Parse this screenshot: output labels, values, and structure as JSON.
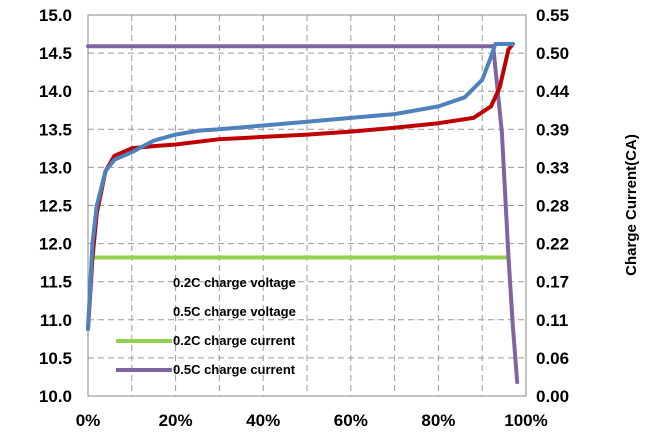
{
  "chart_data": {
    "type": "line",
    "xlabel": "",
    "ylabel_left": "",
    "ylabel_right": "Charge Current(CA)",
    "x_ticks": [
      "0%",
      "20%",
      "40%",
      "60%",
      "80%",
      "100%"
    ],
    "xlim": [
      0,
      100
    ],
    "y_left_ticks": [
      "10.0",
      "10.5",
      "11.0",
      "11.5",
      "12.0",
      "12.5",
      "13.0",
      "13.5",
      "14.0",
      "14.5",
      "15.0"
    ],
    "ylim_left": [
      10.0,
      15.0
    ],
    "y_right_ticks": [
      "0.00",
      "0.06",
      "0.11",
      "0.17",
      "0.22",
      "0.28",
      "0.33",
      "0.39",
      "0.44",
      "0.50",
      "0.55"
    ],
    "ylim_right": [
      0.0,
      0.55
    ],
    "grid": true,
    "legend_position": "bottom-left",
    "series": [
      {
        "name": "0.2C charge voltage",
        "axis": "left",
        "color": "#c00000",
        "points": [
          [
            0,
            10.88
          ],
          [
            1,
            11.8
          ],
          [
            2,
            12.4
          ],
          [
            4,
            12.95
          ],
          [
            6,
            13.15
          ],
          [
            10,
            13.25
          ],
          [
            15,
            13.28
          ],
          [
            20,
            13.3
          ],
          [
            30,
            13.37
          ],
          [
            40,
            13.4
          ],
          [
            50,
            13.43
          ],
          [
            60,
            13.47
          ],
          [
            70,
            13.52
          ],
          [
            80,
            13.58
          ],
          [
            88,
            13.65
          ],
          [
            92,
            13.8
          ],
          [
            94,
            14.05
          ],
          [
            96,
            14.55
          ],
          [
            97,
            14.62
          ]
        ]
      },
      {
        "name": "0.5C charge voltage",
        "axis": "left",
        "color": "#4f81bd",
        "points": [
          [
            0,
            10.88
          ],
          [
            1,
            12.0
          ],
          [
            2,
            12.5
          ],
          [
            4,
            12.95
          ],
          [
            6,
            13.1
          ],
          [
            10,
            13.2
          ],
          [
            15,
            13.35
          ],
          [
            20,
            13.43
          ],
          [
            25,
            13.48
          ],
          [
            30,
            13.5
          ],
          [
            40,
            13.55
          ],
          [
            50,
            13.6
          ],
          [
            60,
            13.65
          ],
          [
            70,
            13.7
          ],
          [
            80,
            13.8
          ],
          [
            86,
            13.92
          ],
          [
            90,
            14.15
          ],
          [
            92,
            14.45
          ],
          [
            93,
            14.62
          ],
          [
            97,
            14.62
          ]
        ]
      },
      {
        "name": "0.2C charge current",
        "axis": "right",
        "color": "#92d050",
        "points": [
          [
            1,
            0.2
          ],
          [
            96,
            0.2
          ]
        ]
      },
      {
        "name": "0.5C charge current",
        "axis": "right",
        "color": "#8064a2",
        "points": [
          [
            0,
            0.505
          ],
          [
            92.5,
            0.505
          ],
          [
            94.5,
            0.38
          ],
          [
            96,
            0.2
          ],
          [
            97,
            0.1
          ],
          [
            98,
            0.02
          ]
        ]
      }
    ]
  }
}
